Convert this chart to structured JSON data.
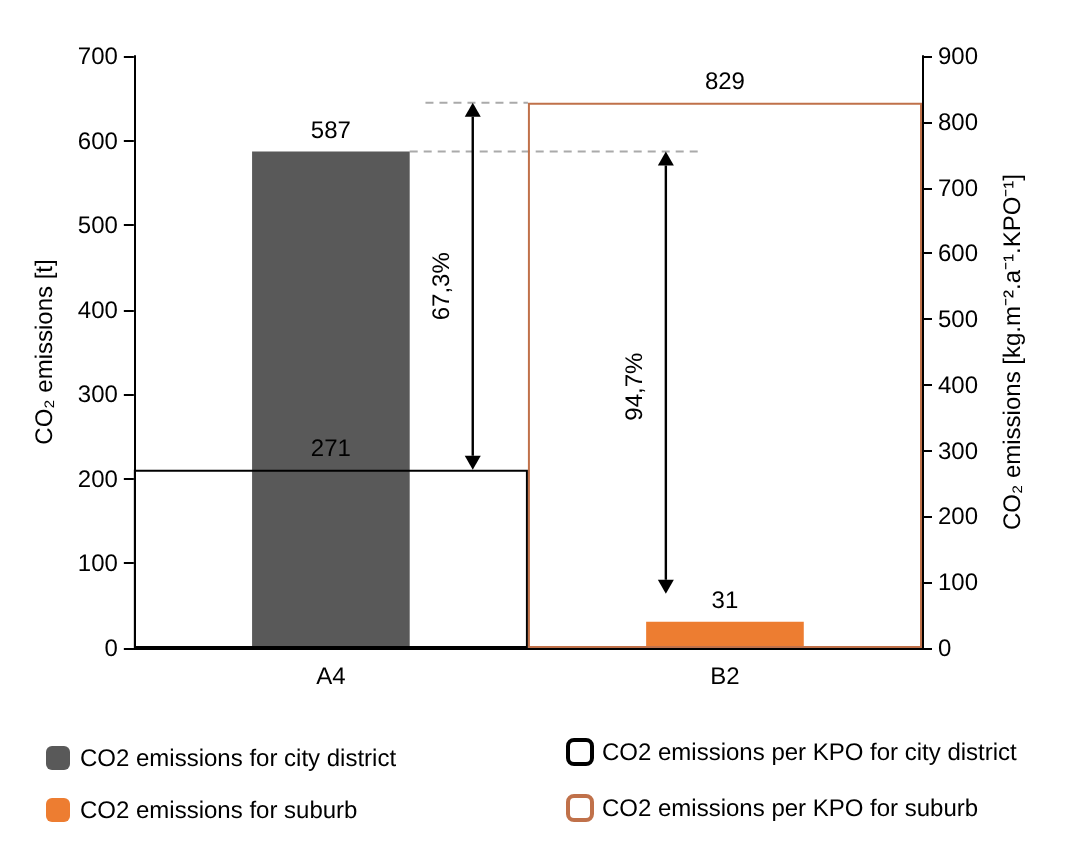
{
  "chart_data": {
    "type": "bar",
    "categories": [
      "A4",
      "B2"
    ],
    "ylabel": "CO₂ emissions [t]",
    "y2label": "CO₂ emissions [kg.m⁻².a⁻¹.KPO⁻¹]",
    "series": [
      {
        "name": "CO2 emissions for city district",
        "color": "#595959",
        "values": [
          587,
          null
        ]
      },
      {
        "name": "CO2 emissions per KPO for city district",
        "color": "#000000",
        "values": [
          271,
          null
        ],
        "axis": "y2"
      },
      {
        "name": "CO2 emissions for suburb",
        "color": "#ed7d31",
        "values": [
          null,
          31
        ]
      },
      {
        "name": "CO2 emissions per KPO for suburb",
        "color": "#c0714a",
        "values": [
          null,
          829
        ],
        "axis": "y2"
      }
    ],
    "ylim": [
      0,
      700
    ],
    "yticks": [
      0,
      100,
      200,
      300,
      400,
      500,
      600,
      700
    ],
    "y2lim": [
      0,
      900
    ],
    "y2ticks": [
      0,
      100,
      200,
      300,
      400,
      500,
      600,
      700,
      800,
      900
    ],
    "annotations": [
      "67,3%",
      "94,7%"
    ],
    "ref_lines": [
      {
        "axis": "y2",
        "value": 829,
        "color": "#aaaaaa",
        "line_style": "dashed"
      },
      {
        "axis": "y",
        "value": 587,
        "color": "#aaaaaa",
        "line_style": "dashed"
      }
    ],
    "data_labels": true,
    "legend": "bottom",
    "grid": false
  }
}
